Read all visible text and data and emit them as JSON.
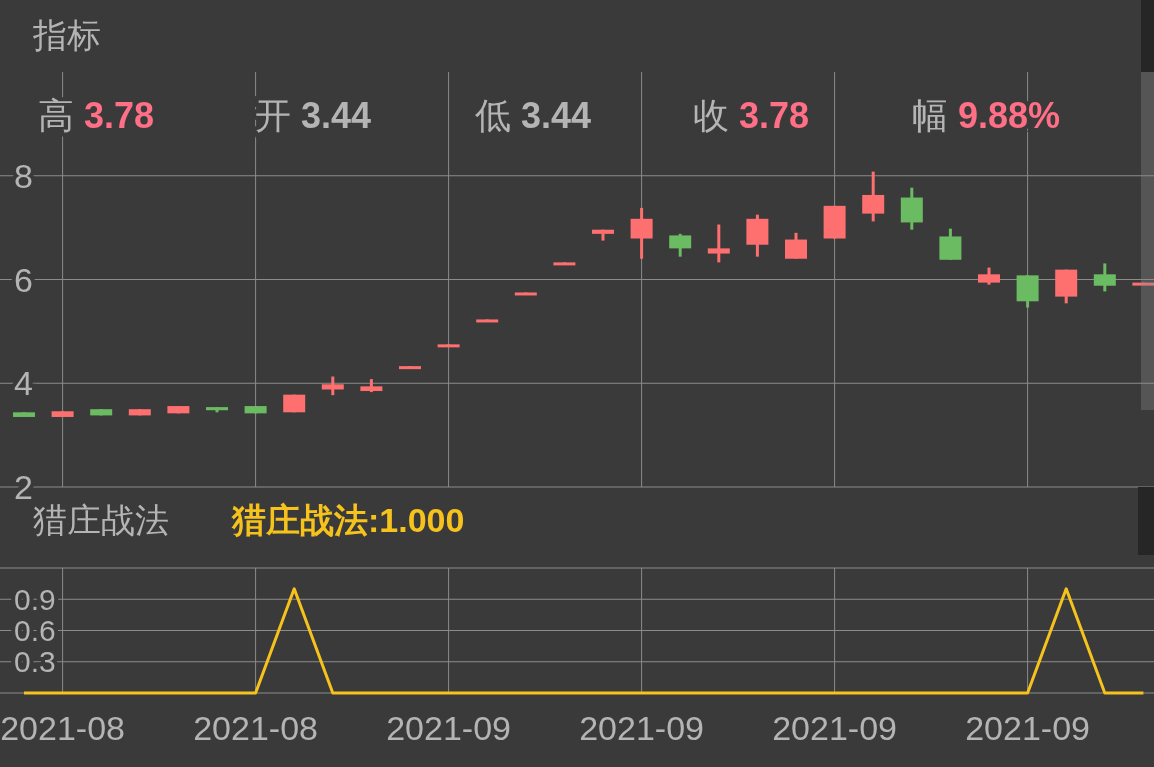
{
  "chart_data": [
    {
      "type": "candlestick",
      "title": "指标",
      "annotations": [
        "高 3.78",
        "开 3.44",
        "低 3.44",
        "收 3.78",
        "幅 9.88%"
      ],
      "categories": [
        null,
        "2021-08",
        null,
        null,
        null,
        null,
        "2021-08",
        null,
        null,
        null,
        null,
        "2021-09",
        null,
        null,
        null,
        null,
        "2021-09",
        null,
        null,
        null,
        null,
        "2021-09",
        null,
        null,
        null,
        null,
        "2021-09",
        null,
        null,
        null
      ],
      "ohlc": [
        [
          3.44,
          3.44,
          3.35,
          3.35
        ],
        [
          3.35,
          3.46,
          3.35,
          3.46
        ],
        [
          3.5,
          3.5,
          3.38,
          3.38
        ],
        [
          3.38,
          3.5,
          3.38,
          3.5
        ],
        [
          3.42,
          3.56,
          3.42,
          3.56
        ],
        [
          3.54,
          3.54,
          3.44,
          3.48
        ],
        [
          3.56,
          3.56,
          3.42,
          3.42
        ],
        [
          3.44,
          3.78,
          3.44,
          3.78
        ],
        [
          3.88,
          4.13,
          3.77,
          3.98
        ],
        [
          3.85,
          4.08,
          3.83,
          3.94
        ],
        [
          4.29,
          4.33,
          4.29,
          4.33
        ],
        [
          4.71,
          4.75,
          4.71,
          4.75
        ],
        [
          5.19,
          5.23,
          5.19,
          5.23
        ],
        [
          5.71,
          5.75,
          5.71,
          5.75
        ],
        [
          6.29,
          6.33,
          6.29,
          6.33
        ],
        [
          6.88,
          6.96,
          6.75,
          6.96
        ],
        [
          6.79,
          7.38,
          6.4,
          7.17
        ],
        [
          6.85,
          6.88,
          6.44,
          6.6
        ],
        [
          6.5,
          7.06,
          6.33,
          6.6
        ],
        [
          6.67,
          7.25,
          6.44,
          7.17
        ],
        [
          6.4,
          6.9,
          6.4,
          6.77
        ],
        [
          6.79,
          7.42,
          6.79,
          7.42
        ],
        [
          7.27,
          8.08,
          7.12,
          7.63
        ],
        [
          7.58,
          7.77,
          6.96,
          7.1
        ],
        [
          6.83,
          6.98,
          6.38,
          6.38
        ],
        [
          5.94,
          6.23,
          5.9,
          6.1
        ],
        [
          6.08,
          6.08,
          5.46,
          5.58
        ],
        [
          5.67,
          6.19,
          5.54,
          6.19
        ],
        [
          6.1,
          6.31,
          5.77,
          5.88
        ],
        [
          5.9,
          5.94,
          5.9,
          5.94
        ]
      ],
      "colors": [
        "#6bbb62",
        "#fe6f70",
        "#6bbb62",
        "#fe6f70",
        "#fe6f70",
        "#6bbb62",
        "#6bbb62",
        "#fe6f70",
        "#fe6f70",
        "#fe6f70",
        "#fe6f70",
        "#fe6f70",
        "#fe6f70",
        "#fe6f70",
        "#fe6f70",
        "#fe6f70",
        "#fe6f70",
        "#6bbb62",
        "#fe6f70",
        "#fe6f70",
        "#fe6f70",
        "#fe6f70",
        "#fe6f70",
        "#6bbb62",
        "#6bbb62",
        "#fe6f70",
        "#6bbb62",
        "#fe6f70",
        "#6bbb62",
        "#fe6f70"
      ],
      "ylim": [
        2,
        10
      ],
      "yticks": [
        2,
        4,
        6,
        8
      ],
      "grid": true,
      "tick_labels": "y"
    },
    {
      "type": "line",
      "title": "猎庄战法",
      "categories": [
        null,
        "2021-08",
        null,
        null,
        null,
        null,
        "2021-08",
        null,
        null,
        null,
        null,
        "2021-09",
        null,
        null,
        null,
        null,
        "2021-09",
        null,
        null,
        null,
        null,
        "2021-09",
        null,
        null,
        null,
        null,
        "2021-09",
        null,
        null,
        null
      ],
      "series": [
        {
          "name": "猎庄战法:1.000",
          "color": "#f6c21c",
          "values": [
            0,
            0,
            0,
            0,
            0,
            0,
            0,
            1,
            0,
            0,
            0,
            0,
            0,
            0,
            0,
            0,
            0,
            0,
            0,
            0,
            0,
            0,
            0,
            0,
            0,
            0,
            0,
            1,
            0,
            0
          ]
        }
      ],
      "ylim": [
        0,
        1.2
      ],
      "yticks": [
        {
          "value": 0,
          "label": null
        },
        0.3,
        0.6,
        0.9,
        {
          "value": 1.2,
          "label": null
        }
      ],
      "grid": true
    }
  ]
}
